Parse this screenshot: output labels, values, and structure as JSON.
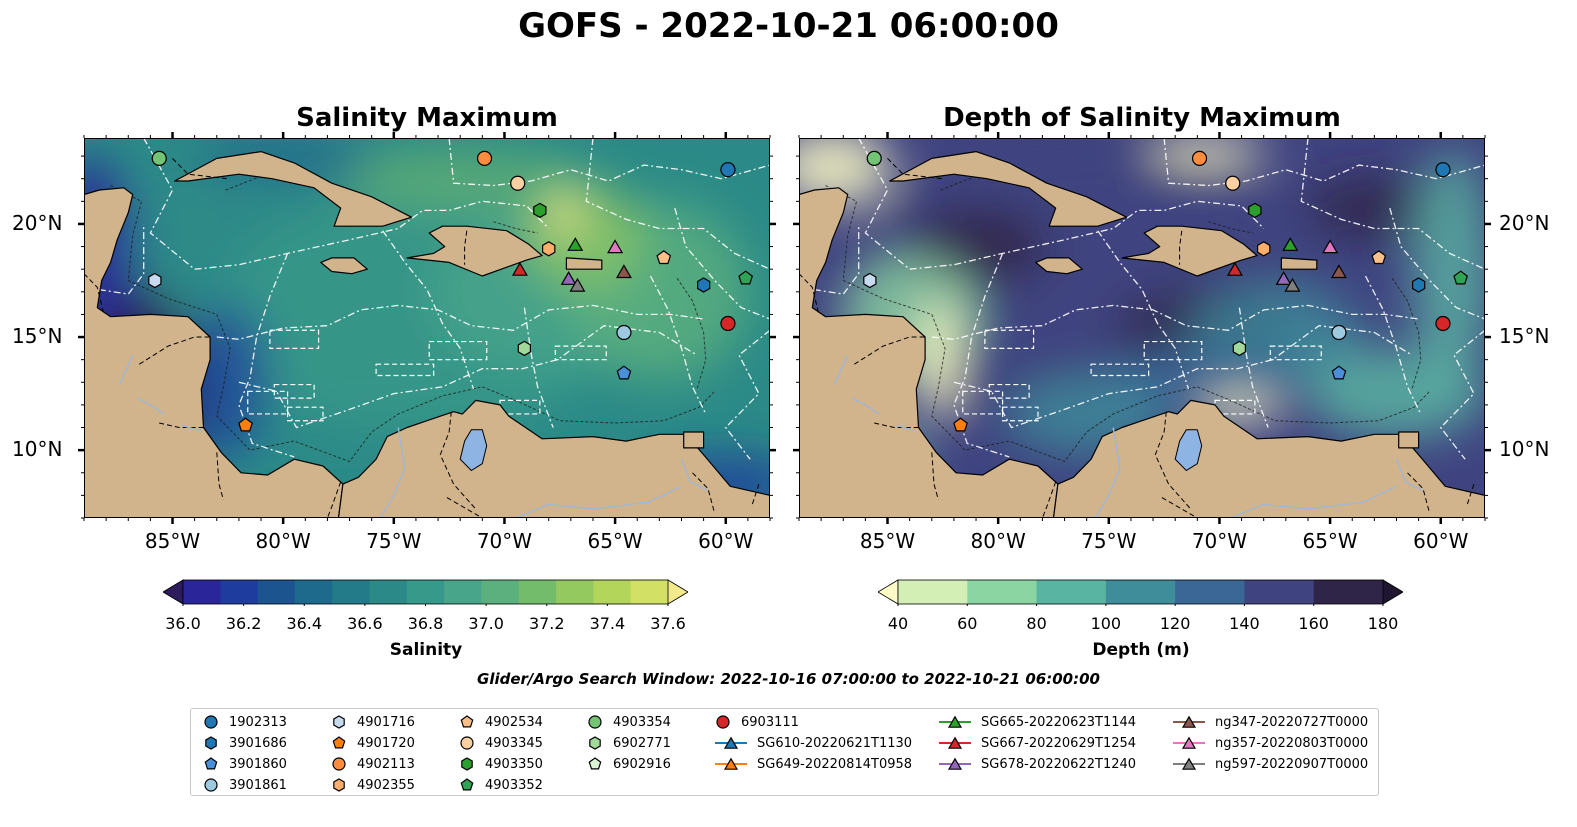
{
  "title": "GOFS - 2022-10-21 06:00:00",
  "panels": [
    {
      "title": "Salinity Maximum",
      "kind": "salinity"
    },
    {
      "title": "Depth of Salinity Maximum",
      "kind": "depth"
    }
  ],
  "map": {
    "lat_labels": [
      "20°N",
      "15°N",
      "10°N"
    ],
    "lon_labels": [
      "85°W",
      "80°W",
      "75°W",
      "70°W",
      "65°W",
      "60°W"
    ],
    "extent": {
      "lon_min": -89,
      "lon_max": -58,
      "lat_min": 7,
      "lat_max": 23.8
    },
    "land_color": "#d2b48c",
    "lake_color": "#8eb4e3"
  },
  "colorbars": [
    {
      "label": "Salinity",
      "ticks": [
        "36.0",
        "36.2",
        "36.4",
        "36.6",
        "36.8",
        "37.0",
        "37.2",
        "37.4",
        "37.6"
      ],
      "colors": [
        "#2c1c5c",
        "#2a2598",
        "#1e3b9e",
        "#1c5490",
        "#1d6a8c",
        "#237b8a",
        "#2b8a87",
        "#37998a",
        "#48a58a",
        "#5cb07d",
        "#73bc6b",
        "#93c95e",
        "#b3d65a",
        "#d2e165",
        "#f3ea8d"
      ]
    },
    {
      "label": "Depth (m)",
      "ticks": [
        "40",
        "60",
        "80",
        "100",
        "120",
        "140",
        "160",
        "180"
      ],
      "colors": [
        "#fdfcc6",
        "#d4efb6",
        "#8bd5a3",
        "#5ab4a2",
        "#3f8d9b",
        "#3b6796",
        "#3f4380",
        "#2f2548",
        "#1f1630"
      ]
    }
  ],
  "search_window": "Glider/Argo Search Window: 2022-10-16 07:00:00 to 2022-10-21 06:00:00",
  "legend": [
    {
      "label": "1902313",
      "shape": "circle",
      "color": "#1f77b4"
    },
    {
      "label": "3901686",
      "shape": "hexagon",
      "color": "#1f77b4"
    },
    {
      "label": "3901860",
      "shape": "pentagon",
      "color": "#4a90d9"
    },
    {
      "label": "3901861",
      "shape": "circle",
      "color": "#9ecae1"
    },
    {
      "label": "4901716",
      "shape": "hexagon",
      "color": "#c6dbef"
    },
    {
      "label": "4901720",
      "shape": "pentagon",
      "color": "#ff7f0e"
    },
    {
      "label": "4902113",
      "shape": "circle",
      "color": "#fd8d3c"
    },
    {
      "label": "4902355",
      "shape": "hexagon",
      "color": "#fdae6b"
    },
    {
      "label": "4902534",
      "shape": "pentagon",
      "color": "#fdbf8a"
    },
    {
      "label": "4903345",
      "shape": "circle",
      "color": "#fdd0a2"
    },
    {
      "label": "4903350",
      "shape": "hexagon",
      "color": "#2ca02c"
    },
    {
      "label": "4903352",
      "shape": "pentagon",
      "color": "#31a354"
    },
    {
      "label": "4903354",
      "shape": "circle",
      "color": "#74c476"
    },
    {
      "label": "6902771",
      "shape": "hexagon",
      "color": "#a1d99b"
    },
    {
      "label": "6902916",
      "shape": "pentagon",
      "color": "#d9f5d3"
    },
    {
      "label": "6903111",
      "shape": "circle",
      "color": "#d62728"
    },
    {
      "label": "SG610-20220621T1130",
      "shape": "triangle",
      "color": "#1f77b4",
      "line": true
    },
    {
      "label": "SG649-20220814T0958",
      "shape": "triangle",
      "color": "#ff7f0e",
      "line": true
    },
    {
      "label": "SG665-20220623T1144",
      "shape": "triangle",
      "color": "#2ca02c",
      "line": true
    },
    {
      "label": "SG667-20220629T1254",
      "shape": "triangle",
      "color": "#d62728",
      "line": true
    },
    {
      "label": "SG678-20220622T1240",
      "shape": "triangle",
      "color": "#9467bd",
      "line": true
    },
    {
      "label": "ng347-20220727T0000",
      "shape": "triangle",
      "color": "#8c564b",
      "line": true
    },
    {
      "label": "ng357-20220803T0000",
      "shape": "triangle",
      "color": "#e377c2",
      "line": true
    },
    {
      "label": "ng597-20220907T0000",
      "shape": "triangle",
      "color": "#7f7f7f",
      "line": true
    }
  ],
  "markers": [
    {
      "ref": "1902313",
      "lon": -59.9,
      "lat": 22.4
    },
    {
      "ref": "4903354",
      "lon": -85.6,
      "lat": 22.9
    },
    {
      "ref": "4902113",
      "lon": -70.9,
      "lat": 22.9
    },
    {
      "ref": "4903345",
      "lon": -69.4,
      "lat": 21.8
    },
    {
      "ref": "4903350",
      "lon": -68.4,
      "lat": 20.6
    },
    {
      "ref": "4902355",
      "lon": -68.0,
      "lat": 18.9
    },
    {
      "ref": "SG665-20220623T1144",
      "lon": -66.8,
      "lat": 19.1
    },
    {
      "ref": "SG667-20220629T1254",
      "lon": -69.3,
      "lat": 18.0
    },
    {
      "ref": "ng357-20220803T0000",
      "lon": -65.0,
      "lat": 19.0
    },
    {
      "ref": "4902534",
      "lon": -62.8,
      "lat": 18.5
    },
    {
      "ref": "ng347-20220727T0000",
      "lon": -64.6,
      "lat": 17.9
    },
    {
      "ref": "SG678-20220622T1240",
      "lon": -67.1,
      "lat": 17.6
    },
    {
      "ref": "ng597-20220907T0000",
      "lon": -66.7,
      "lat": 17.3
    },
    {
      "ref": "3901686",
      "lon": -61.0,
      "lat": 17.3
    },
    {
      "ref": "4903352",
      "lon": -59.1,
      "lat": 17.6
    },
    {
      "ref": "4901716",
      "lon": -85.8,
      "lat": 17.5
    },
    {
      "ref": "6903111",
      "lon": -59.9,
      "lat": 15.6
    },
    {
      "ref": "3901861",
      "lon": -64.6,
      "lat": 15.2
    },
    {
      "ref": "6902771",
      "lon": -69.1,
      "lat": 14.5
    },
    {
      "ref": "3901860",
      "lon": -64.6,
      "lat": 13.4
    },
    {
      "ref": "4901720",
      "lon": -81.7,
      "lat": 11.1
    }
  ]
}
